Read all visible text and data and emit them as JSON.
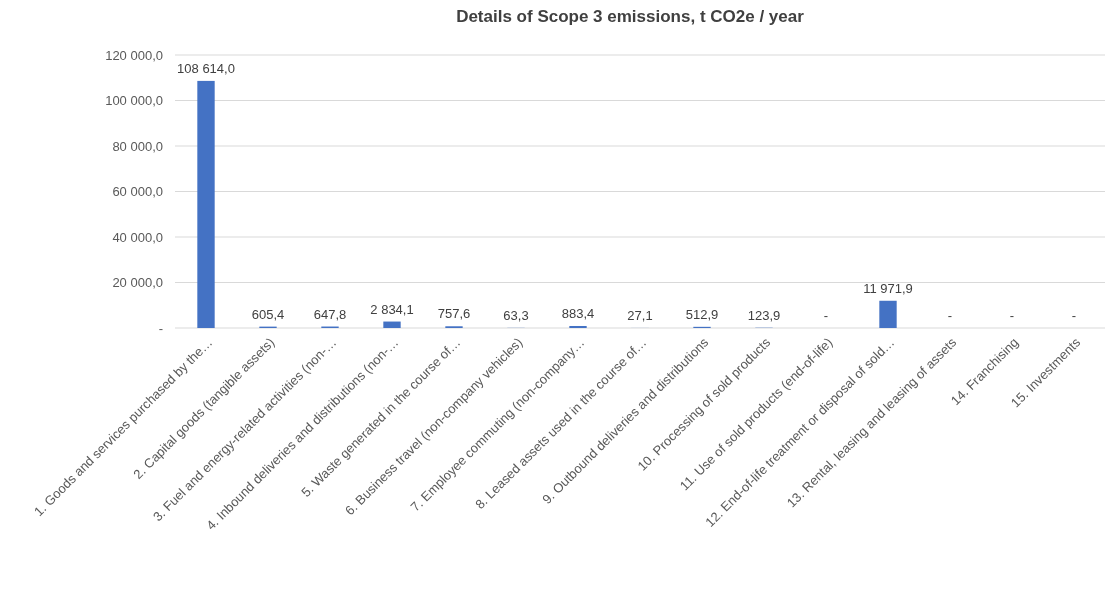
{
  "chart_data": {
    "type": "bar",
    "title": "Details of Scope 3 emissions, t CO2e / year",
    "categories": [
      "1. Goods and services purchased by the…",
      "2. Capital goods (tangible assets)",
      "3. Fuel and energy-related activities (non-…",
      "4. Inbound deliveries and distributions (non-…",
      "5. Waste generated in the course of…",
      "6. Business travel (non-company vehicles)",
      "7. Employee commuting (non-company…",
      "8. Leased assets used in the course of…",
      "9. Outbound deliveries and distributions",
      "10. Processing of sold products",
      "11. Use of sold products (end-of-life)",
      "12. End-of-life treatment or disposal of sold…",
      "13. Rental, leasing and leasing of assets",
      "14. Franchising",
      "15. Investments"
    ],
    "values": [
      108614.0,
      605.4,
      647.8,
      2834.1,
      757.6,
      63.3,
      883.4,
      27.1,
      512.9,
      123.9,
      0,
      11971.9,
      0,
      0,
      0
    ],
    "value_labels": [
      "108 614,0",
      "605,4",
      "647,8",
      "2 834,1",
      "757,6",
      "63,3",
      "883,4",
      "27,1",
      "512,9",
      "123,9",
      "-",
      "11 971,9",
      "-",
      "-",
      "-"
    ],
    "color": "#4472c4",
    "ylim": [
      0,
      120000
    ],
    "yticks": [
      {
        "value": 0,
        "label": "-"
      },
      {
        "value": 20000,
        "label": "20 000,0"
      },
      {
        "value": 40000,
        "label": "40 000,0"
      },
      {
        "value": 60000,
        "label": "60 000,0"
      },
      {
        "value": 80000,
        "label": "80 000,0"
      },
      {
        "value": 100000,
        "label": "100 000,0"
      },
      {
        "value": 120000,
        "label": "120 000,0"
      }
    ],
    "grid": "y"
  }
}
